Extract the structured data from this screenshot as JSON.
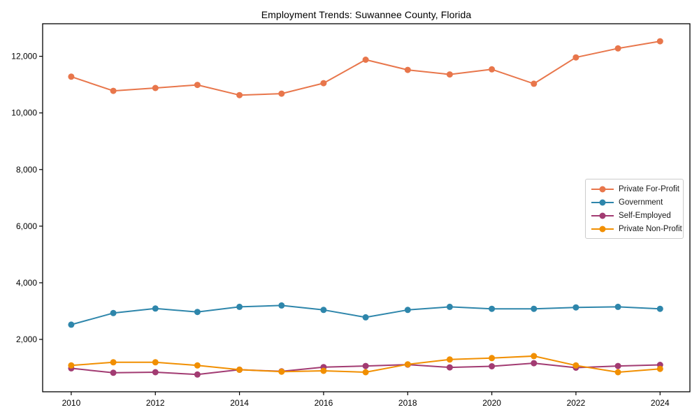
{
  "page": {
    "background_color": "#ffffff",
    "axis_color": "#000000",
    "legend_border_color": "#cccccc"
  },
  "chart_data": {
    "type": "line",
    "title": "Employment Trends: Suwannee County, Florida",
    "xlabel": "",
    "ylabel": "",
    "grid": false,
    "legend_position": "center-right",
    "x": [
      2010,
      2011,
      2012,
      2013,
      2014,
      2015,
      2016,
      2017,
      2018,
      2019,
      2020,
      2021,
      2022,
      2023,
      2024
    ],
    "xticks": [
      2010,
      2012,
      2014,
      2016,
      2018,
      2020,
      2022,
      2024
    ],
    "yticks": [
      2000,
      4000,
      6000,
      8000,
      10000,
      12000
    ],
    "ytick_labels": [
      "2,000",
      "4,000",
      "6,000",
      "8,000",
      "10,000",
      "12,000"
    ],
    "xlim": [
      2009.32,
      2024.71
    ],
    "ylim": [
      150,
      13150
    ],
    "series": [
      {
        "name": "Private For-Profit",
        "color": "#E8764B",
        "values": [
          11280,
          10780,
          10880,
          10990,
          10630,
          10680,
          11050,
          11880,
          11520,
          11360,
          11540,
          11030,
          11960,
          12280,
          12530
        ]
      },
      {
        "name": "Government",
        "color": "#2E86AB",
        "values": [
          2520,
          2930,
          3090,
          2970,
          3150,
          3200,
          3040,
          2780,
          3040,
          3150,
          3080,
          3080,
          3130,
          3150,
          3080
        ]
      },
      {
        "name": "Self-Employed",
        "color": "#A23B72",
        "values": [
          980,
          820,
          840,
          760,
          930,
          870,
          1020,
          1060,
          1110,
          1010,
          1050,
          1160,
          1000,
          1060,
          1100
        ]
      },
      {
        "name": "Private Non-Profit",
        "color": "#F18F01",
        "values": [
          1080,
          1190,
          1190,
          1080,
          930,
          860,
          890,
          840,
          1120,
          1290,
          1340,
          1410,
          1080,
          840,
          960
        ]
      }
    ]
  }
}
